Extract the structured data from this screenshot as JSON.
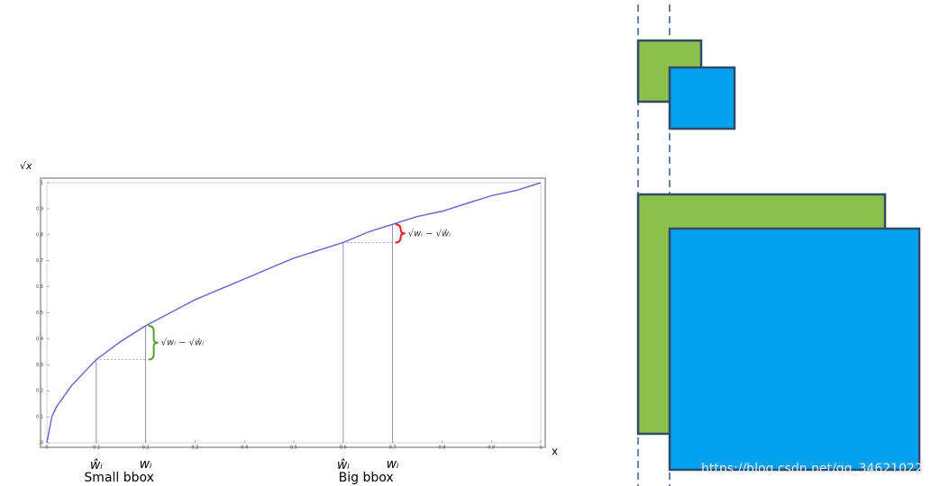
{
  "chart_data": {
    "type": "line",
    "y_label": "√x",
    "x_label": "x",
    "x": [
      0,
      0.01,
      0.02,
      0.05,
      0.1,
      0.15,
      0.2,
      0.25,
      0.3,
      0.35,
      0.4,
      0.45,
      0.5,
      0.55,
      0.6,
      0.65,
      0.7,
      0.75,
      0.8,
      0.85,
      0.9,
      0.95,
      1
    ],
    "values": [
      0,
      0.1,
      0.14,
      0.22,
      0.32,
      0.39,
      0.45,
      0.5,
      0.55,
      0.59,
      0.63,
      0.67,
      0.71,
      0.74,
      0.77,
      0.81,
      0.84,
      0.87,
      0.89,
      0.92,
      0.95,
      0.97,
      1
    ],
    "color": "#6a6ad0",
    "xlim": [
      0,
      1
    ],
    "ylim": [
      0,
      1
    ],
    "xticks": [
      0,
      0.1,
      0.2,
      0.3,
      0.4,
      0.5,
      0.6,
      0.7,
      0.8,
      0.9,
      1
    ],
    "yticks": [
      0,
      0.1,
      0.2,
      0.3,
      0.4,
      0.5,
      0.6,
      0.7,
      0.8,
      0.9,
      1
    ],
    "pairs": [
      {
        "label": "Small bbox",
        "pred_label": "ŵᵢ",
        "true_label": "wᵢ",
        "pred": 0.1,
        "true": 0.2,
        "diff_label": "√wᵢ − √ŵᵢ",
        "color": "#5aa02c"
      },
      {
        "label": "Big bbox",
        "pred_label": "ŵᵢ",
        "true_label": "wᵢ",
        "pred": 0.6,
        "true": 0.7,
        "diff_label": "√wᵢ − √ŵᵢ",
        "color": "#e02020"
      }
    ]
  },
  "watermark": "https://blog.csdn.net/qq_34621022"
}
